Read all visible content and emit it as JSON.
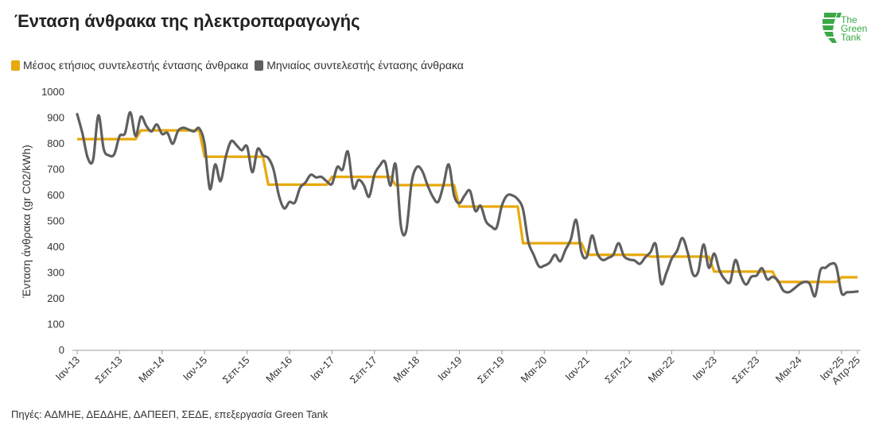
{
  "title": "Ένταση άνθρακα της ηλεκτροπαραγωγής",
  "logo": {
    "line1": "The",
    "line2": "Green",
    "line3": "Tank"
  },
  "source": "Πηγές: ΑΔΜΗΕ, ΔΕΔΔΗΕ, ΔΑΠΕΕΠ, ΣΕΔΕ, επεξεργασία Green Tank",
  "colors": {
    "annual": "#e8a90c",
    "monthly": "#5f5f5f",
    "logo": "#3aa845"
  },
  "chart_data": {
    "type": "line",
    "title": "Ένταση άνθρακα της ηλεκτροπαραγωγής",
    "xlabel": "",
    "ylabel": "Ένταση άνθρακα (gr C02/kWh)",
    "ylim": [
      0,
      1000
    ],
    "yticks": [
      0,
      100,
      200,
      300,
      400,
      500,
      600,
      700,
      800,
      900,
      1000
    ],
    "xticks": [
      {
        "m": 0,
        "label": "Ιαν-13"
      },
      {
        "m": 8,
        "label": "Σεπ-13"
      },
      {
        "m": 16,
        "label": "Μαι-14"
      },
      {
        "m": 24,
        "label": "Ιαν-15"
      },
      {
        "m": 32,
        "label": "Σεπ-15"
      },
      {
        "m": 40,
        "label": "Μαι-16"
      },
      {
        "m": 48,
        "label": "Ιαν-17"
      },
      {
        "m": 56,
        "label": "Σεπ-17"
      },
      {
        "m": 64,
        "label": "Μαι-18"
      },
      {
        "m": 72,
        "label": "Ιαν-19"
      },
      {
        "m": 80,
        "label": "Σεπ-19"
      },
      {
        "m": 88,
        "label": "Μαι-20"
      },
      {
        "m": 96,
        "label": "Ιαν-21"
      },
      {
        "m": 104,
        "label": "Σεπ-21"
      },
      {
        "m": 112,
        "label": "Μαι-22"
      },
      {
        "m": 120,
        "label": "Ιαν-23"
      },
      {
        "m": 128,
        "label": "Σεπ-23"
      },
      {
        "m": 136,
        "label": "Μαι-24"
      },
      {
        "m": 144,
        "label": "Ιαν-25"
      },
      {
        "m": 147,
        "label": "Απρ-25"
      }
    ],
    "months_count": 148,
    "series": [
      {
        "name": "Μέσος ετήσιος συντελεστής έντασης άνθρακα",
        "color": "#e8a90c",
        "annual_values": [
          {
            "year": 2013,
            "value": 818
          },
          {
            "year": 2014,
            "value": 852
          },
          {
            "year": 2015,
            "value": 750
          },
          {
            "year": 2016,
            "value": 642
          },
          {
            "year": 2017,
            "value": 672
          },
          {
            "year": 2018,
            "value": 640
          },
          {
            "year": 2019,
            "value": 557
          },
          {
            "year": 2020,
            "value": 415
          },
          {
            "year": 2021,
            "value": 370
          },
          {
            "year": 2022,
            "value": 363
          },
          {
            "year": 2023,
            "value": 305
          },
          {
            "year": 2024,
            "value": 265
          },
          {
            "year": 2025,
            "value": 283
          }
        ]
      },
      {
        "name": "Μηνιαίος συντελεστής έντασης άνθρακα",
        "color": "#5f5f5f",
        "values": [
          915,
          840,
          745,
          738,
          910,
          780,
          755,
          760,
          830,
          840,
          922,
          830,
          905,
          870,
          848,
          875,
          838,
          842,
          800,
          850,
          862,
          855,
          848,
          860,
          800,
          625,
          720,
          655,
          750,
          810,
          795,
          775,
          790,
          690,
          780,
          755,
          745,
          700,
          600,
          550,
          575,
          572,
          630,
          650,
          680,
          670,
          672,
          655,
          645,
          710,
          700,
          770,
          630,
          660,
          640,
          595,
          680,
          715,
          730,
          638,
          720,
          480,
          465,
          650,
          710,
          695,
          640,
          595,
          575,
          640,
          720,
          600,
          570,
          600,
          618,
          540,
          560,
          500,
          480,
          475,
          560,
          600,
          600,
          585,
          545,
          420,
          370,
          325,
          328,
          340,
          370,
          345,
          390,
          430,
          505,
          380,
          362,
          445,
          375,
          350,
          358,
          370,
          415,
          365,
          352,
          348,
          335,
          360,
          380,
          410,
          260,
          300,
          355,
          385,
          435,
          380,
          295,
          305,
          410,
          320,
          375,
          310,
          275,
          265,
          350,
          290,
          255,
          285,
          290,
          318,
          275,
          285,
          270,
          232,
          225,
          238,
          255,
          265,
          258,
          210,
          310,
          320,
          335,
          325,
          222,
          225,
          226,
          228
        ]
      }
    ]
  }
}
